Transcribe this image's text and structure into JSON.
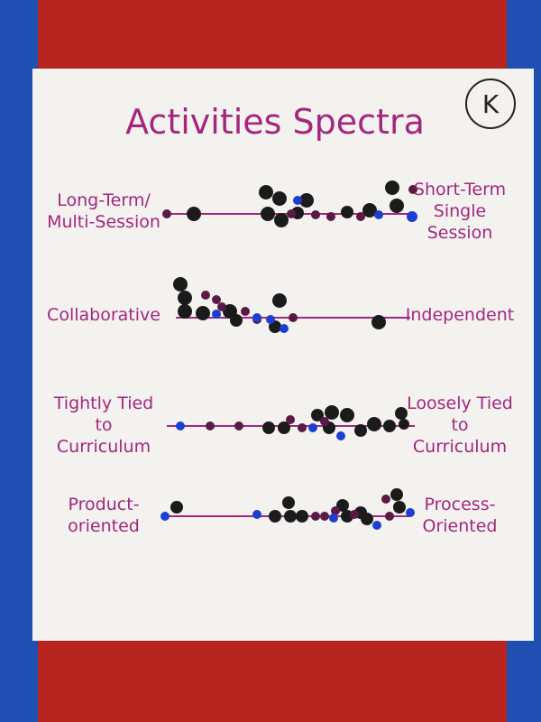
{
  "title": "Activities Spectra",
  "badge": "K",
  "spectra": [
    {
      "left": [
        "Long-Term/",
        "Multi-Session"
      ],
      "right": [
        "Short-Term",
        "Single",
        "Session"
      ]
    },
    {
      "left": [
        "Collaborative"
      ],
      "right": [
        "Independent"
      ]
    },
    {
      "left": [
        "Tightly Tied",
        "to",
        "Curriculum"
      ],
      "right": [
        "Loosely Tied",
        "to",
        "Curriculum"
      ]
    },
    {
      "left": [
        "Product-",
        "oriented"
      ],
      "right": [
        "Process-",
        "Oriented"
      ]
    }
  ]
}
